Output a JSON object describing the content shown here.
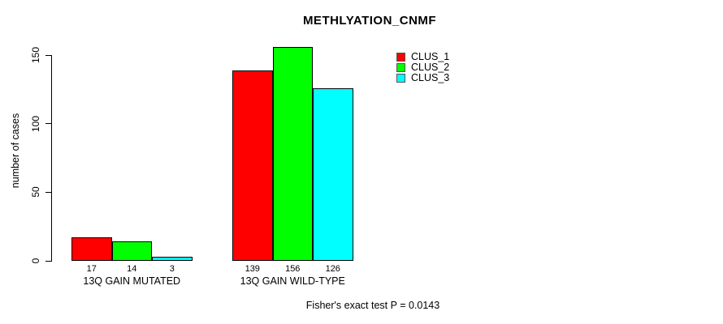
{
  "title": "METHLYATION_CNMF",
  "y_axis_title": "number of cases",
  "footer_note": "Fisher's exact test P = 0.0143",
  "colors": {
    "clus_1": "#FF0000",
    "clus_2": "#00FF00",
    "clus_3": "#00FFFF",
    "axis": "#000000",
    "background": "#FFFFFF"
  },
  "chart_data": {
    "type": "bar",
    "title": "METHLYATION_CNMF",
    "xlabel": "",
    "ylabel": "number of cases",
    "categories": [
      "13Q GAIN MUTATED",
      "13Q GAIN WILD-TYPE"
    ],
    "series": [
      {
        "name": "CLUS_1",
        "color": "#FF0000",
        "values": [
          17,
          139
        ]
      },
      {
        "name": "CLUS_2",
        "color": "#00FF00",
        "values": [
          14,
          156
        ]
      },
      {
        "name": "CLUS_3",
        "color": "#00FFFF",
        "values": [
          3,
          126
        ]
      }
    ],
    "bar_value_labels": [
      [
        "17",
        "14",
        "3"
      ],
      [
        "139",
        "156",
        "126"
      ]
    ],
    "yticks": [
      0,
      50,
      100,
      150
    ],
    "ylim": [
      0,
      156
    ],
    "grid": false,
    "legend_position": "top-right",
    "annotation": "Fisher's exact test P = 0.0143"
  }
}
